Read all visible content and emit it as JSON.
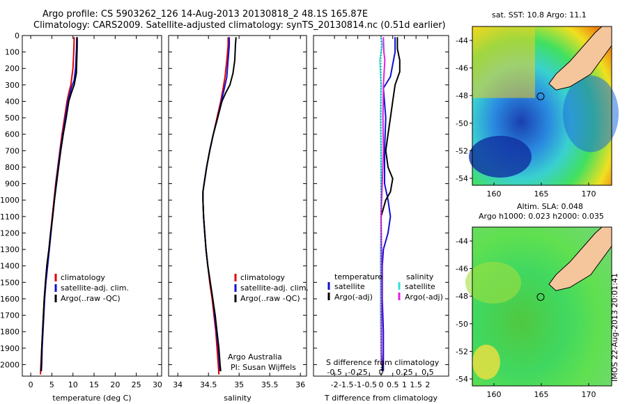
{
  "header": {
    "line1": "Argo profile: CS 5903262_126 14-Aug-2013 20130818_2 48.1S 165.87E",
    "line2": "Climatology: CARS2009. Satellite-adjusted climatology: synTS_20130814.nc (0.51d earlier)"
  },
  "colors": {
    "climatology": "#e00000",
    "satellite": "#1010d0",
    "argo": "#000000",
    "sal_satellite": "#30e0e0",
    "sal_argo": "#e020e0",
    "land": "#f5c59c"
  },
  "chart_data": [
    {
      "type": "line",
      "xlabel": "temperature (deg C)",
      "xticks": [
        "0",
        "5",
        "10",
        "15",
        "20",
        "25",
        "30"
      ],
      "xlim": [
        -2,
        31
      ],
      "yticks": [
        "0",
        "100",
        "200",
        "300",
        "400",
        "500",
        "600",
        "700",
        "800",
        "900",
        "1000",
        "1100",
        "1200",
        "1300",
        "1400",
        "1500",
        "1600",
        "1700",
        "1800",
        "1900",
        "2000"
      ],
      "ylim": [
        0,
        2070
      ],
      "yreversed": true,
      "legend": [
        "climatology",
        "satellite-adj. clim.",
        "Argo(..raw -QC)"
      ],
      "series": [
        {
          "name": "climatology",
          "color": "#e00000",
          "points": [
            [
              10.3,
              10
            ],
            [
              10.2,
              100
            ],
            [
              10.0,
              200
            ],
            [
              9.5,
              300
            ],
            [
              9.0,
              350
            ],
            [
              8.6,
              400
            ],
            [
              8.0,
              500
            ],
            [
              7.4,
              600
            ],
            [
              6.9,
              700
            ],
            [
              6.4,
              800
            ],
            [
              5.9,
              900
            ],
            [
              5.5,
              1000
            ],
            [
              5.1,
              1100
            ],
            [
              4.7,
              1200
            ],
            [
              4.3,
              1300
            ],
            [
              3.8,
              1400
            ],
            [
              3.5,
              1500
            ],
            [
              3.2,
              1600
            ],
            [
              3.0,
              1700
            ],
            [
              2.8,
              1800
            ],
            [
              2.6,
              1900
            ],
            [
              2.4,
              2000
            ],
            [
              2.3,
              2060
            ]
          ]
        },
        {
          "name": "satellite-adj. clim.",
          "color": "#1010d0",
          "points": [
            [
              10.9,
              10
            ],
            [
              10.8,
              100
            ],
            [
              10.6,
              200
            ],
            [
              10.3,
              270
            ],
            [
              9.6,
              320
            ],
            [
              9.2,
              360
            ],
            [
              8.8,
              400
            ],
            [
              8.2,
              500
            ],
            [
              7.6,
              600
            ],
            [
              7.0,
              700
            ],
            [
              6.5,
              800
            ],
            [
              6.0,
              900
            ],
            [
              5.6,
              1000
            ],
            [
              5.2,
              1100
            ],
            [
              4.8,
              1200
            ],
            [
              4.4,
              1300
            ],
            [
              4.0,
              1400
            ],
            [
              3.6,
              1500
            ],
            [
              3.3,
              1600
            ],
            [
              3.1,
              1700
            ],
            [
              2.9,
              1800
            ],
            [
              2.7,
              1900
            ],
            [
              2.6,
              2000
            ],
            [
              2.5,
              2040
            ]
          ]
        },
        {
          "name": "Argo(..raw -QC)",
          "color": "#000000",
          "points": [
            [
              11.0,
              10
            ],
            [
              11.0,
              60
            ],
            [
              10.9,
              150
            ],
            [
              10.8,
              230
            ],
            [
              10.3,
              300
            ],
            [
              9.6,
              350
            ],
            [
              9.0,
              400
            ],
            [
              8.4,
              500
            ],
            [
              7.7,
              600
            ],
            [
              7.1,
              700
            ],
            [
              6.6,
              800
            ],
            [
              6.1,
              900
            ],
            [
              5.6,
              1000
            ],
            [
              5.2,
              1100
            ],
            [
              4.7,
              1200
            ],
            [
              4.3,
              1300
            ],
            [
              3.8,
              1400
            ],
            [
              3.5,
              1500
            ],
            [
              3.2,
              1600
            ],
            [
              3.0,
              1700
            ],
            [
              2.8,
              1800
            ],
            [
              2.6,
              1900
            ],
            [
              2.5,
              2000
            ],
            [
              2.4,
              2040
            ]
          ]
        }
      ]
    },
    {
      "type": "line",
      "xlabel": "salinity",
      "xticks": [
        "34",
        "34.5",
        "35",
        "35.5",
        "36"
      ],
      "xlim": [
        33.85,
        36.1
      ],
      "ylim": [
        0,
        2070
      ],
      "yreversed": true,
      "legend": [
        "climatology",
        "satellite-adj. clim.",
        "Argo(..raw -QC)"
      ],
      "annotation": [
        "Argo Australia",
        "PI: Susan Wijffels"
      ],
      "series": [
        {
          "name": "climatology",
          "color": "#e00000",
          "points": [
            [
              34.82,
              10
            ],
            [
              34.82,
              60
            ],
            [
              34.8,
              150
            ],
            [
              34.77,
              250
            ],
            [
              34.74,
              320
            ],
            [
              34.7,
              400
            ],
            [
              34.64,
              500
            ],
            [
              34.58,
              600
            ],
            [
              34.52,
              700
            ],
            [
              34.47,
              800
            ],
            [
              34.43,
              900
            ],
            [
              34.41,
              950
            ],
            [
              34.41,
              1000
            ],
            [
              34.42,
              1100
            ],
            [
              34.44,
              1200
            ],
            [
              34.46,
              1300
            ],
            [
              34.49,
              1400
            ],
            [
              34.52,
              1500
            ],
            [
              34.56,
              1600
            ],
            [
              34.59,
              1700
            ],
            [
              34.62,
              1800
            ],
            [
              34.64,
              1900
            ],
            [
              34.66,
              2000
            ],
            [
              34.67,
              2060
            ]
          ]
        },
        {
          "name": "satellite-adj. clim.",
          "color": "#1010d0",
          "points": [
            [
              34.84,
              10
            ],
            [
              34.84,
              60
            ],
            [
              34.82,
              150
            ],
            [
              34.8,
              250
            ],
            [
              34.76,
              320
            ],
            [
              34.71,
              400
            ],
            [
              34.65,
              500
            ],
            [
              34.58,
              600
            ],
            [
              34.52,
              700
            ],
            [
              34.47,
              800
            ],
            [
              34.43,
              900
            ],
            [
              34.41,
              950
            ],
            [
              34.41,
              1000
            ],
            [
              34.42,
              1100
            ],
            [
              34.44,
              1200
            ],
            [
              34.46,
              1300
            ],
            [
              34.49,
              1400
            ],
            [
              34.53,
              1500
            ],
            [
              34.57,
              1600
            ],
            [
              34.6,
              1700
            ],
            [
              34.63,
              1800
            ],
            [
              34.66,
              1900
            ],
            [
              34.68,
              2000
            ],
            [
              34.69,
              2040
            ]
          ]
        },
        {
          "name": "Argo(..raw -QC)",
          "color": "#000000",
          "points": [
            [
              34.95,
              10
            ],
            [
              34.94,
              60
            ],
            [
              34.93,
              150
            ],
            [
              34.9,
              230
            ],
            [
              34.85,
              300
            ],
            [
              34.78,
              350
            ],
            [
              34.72,
              400
            ],
            [
              34.65,
              500
            ],
            [
              34.58,
              600
            ],
            [
              34.52,
              700
            ],
            [
              34.47,
              800
            ],
            [
              34.43,
              900
            ],
            [
              34.41,
              950
            ],
            [
              34.41,
              1000
            ],
            [
              34.42,
              1100
            ],
            [
              34.44,
              1200
            ],
            [
              34.46,
              1300
            ],
            [
              34.49,
              1400
            ],
            [
              34.53,
              1500
            ],
            [
              34.57,
              1600
            ],
            [
              34.61,
              1700
            ],
            [
              34.64,
              1800
            ],
            [
              34.67,
              1900
            ],
            [
              34.69,
              2000
            ],
            [
              34.7,
              2040
            ]
          ]
        }
      ]
    },
    {
      "type": "line",
      "xlabel": "T difference from climatology",
      "xlabel_top": "S difference from climatology",
      "xticks": [
        "-2",
        "-1.5",
        "-1",
        "-0.5",
        "0",
        "0.5",
        "1",
        "1.5",
        "2"
      ],
      "xticks_top": [
        "-0.5",
        "-0.25",
        "0",
        "0.25",
        "0.5"
      ],
      "xlim": [
        -2.9,
        2.9
      ],
      "ylim": [
        0,
        2070
      ],
      "yreversed": true,
      "legend": {
        "temperature": "temperature",
        "salinity": "salinity",
        "t_sat": "satellite",
        "t_argo": "Argo(-adj)",
        "s_sat": "satellite",
        "s_argo": "Argo(-adj)"
      },
      "series": [
        {
          "name": "temperature satellite",
          "color": "#1010d0",
          "points": [
            [
              0.6,
              10
            ],
            [
              0.6,
              100
            ],
            [
              0.4,
              250
            ],
            [
              0.1,
              320
            ],
            [
              0.2,
              500
            ],
            [
              0.15,
              700
            ],
            [
              0.15,
              900
            ],
            [
              0.3,
              1000
            ],
            [
              0.4,
              1100
            ],
            [
              0.3,
              1200
            ],
            [
              0.1,
              1300
            ],
            [
              0.05,
              1400
            ],
            [
              0.05,
              1600
            ],
            [
              0.1,
              1800
            ],
            [
              0.1,
              2000
            ],
            [
              0.1,
              2040
            ]
          ]
        },
        {
          "name": "temperature Argo(-adj)",
          "color": "#000000",
          "points": [
            [
              0.7,
              10
            ],
            [
              0.7,
              80
            ],
            [
              0.8,
              150
            ],
            [
              0.8,
              220
            ],
            [
              0.6,
              300
            ],
            [
              0.5,
              400
            ],
            [
              0.4,
              500
            ],
            [
              0.3,
              600
            ],
            [
              0.2,
              700
            ],
            [
              0.3,
              800
            ],
            [
              0.5,
              870
            ],
            [
              0.4,
              950
            ],
            [
              0.2,
              1000
            ],
            [
              0.0,
              1100
            ],
            [
              0.0,
              1300
            ],
            [
              0.0,
              1500
            ],
            [
              0.0,
              1700
            ],
            [
              0.0,
              1900
            ],
            [
              0.05,
              2000
            ],
            [
              0.05,
              2040
            ]
          ]
        },
        {
          "name": "salinity satellite",
          "color": "#30e0e0",
          "points": [
            [
              0.0,
              10
            ],
            [
              0.05,
              60
            ],
            [
              -0.05,
              150
            ],
            [
              0.0,
              300
            ],
            [
              -0.02,
              500
            ],
            [
              0.0,
              700
            ],
            [
              0.0,
              900
            ],
            [
              0.0,
              1100
            ],
            [
              -0.02,
              1300
            ],
            [
              -0.02,
              1500
            ],
            [
              -0.02,
              1700
            ],
            [
              0.0,
              2000
            ]
          ]
        },
        {
          "name": "salinity Argo(-adj)",
          "color": "#e020e0",
          "points": [
            [
              0.1,
              10
            ],
            [
              0.12,
              100
            ],
            [
              0.16,
              150
            ],
            [
              0.1,
              300
            ],
            [
              0.08,
              500
            ],
            [
              0.1,
              700
            ],
            [
              0.05,
              900
            ],
            [
              0.0,
              1100
            ],
            [
              0.02,
              1300
            ],
            [
              0.02,
              1500
            ],
            [
              0.02,
              1700
            ],
            [
              0.02,
              1900
            ],
            [
              0.02,
              2000
            ]
          ]
        }
      ]
    }
  ],
  "maps": {
    "sst": {
      "title": "sat. SST: 10.8 Argo: 11.1",
      "yticks": [
        "-44",
        "-46",
        "-48",
        "-50",
        "-52",
        "-54"
      ],
      "xticks": [
        "160",
        "165",
        "170"
      ]
    },
    "sla": {
      "title1": "Altim. SLA: 0.048",
      "title2": "Argo h1000: 0.023 h2000: 0.035",
      "yticks": [
        "-44",
        "-46",
        "-48",
        "-50",
        "-52",
        "-54"
      ],
      "xticks": [
        "160",
        "165",
        "170"
      ]
    },
    "stamp": "IMOS 22-Aug-2013 20:01:41"
  }
}
